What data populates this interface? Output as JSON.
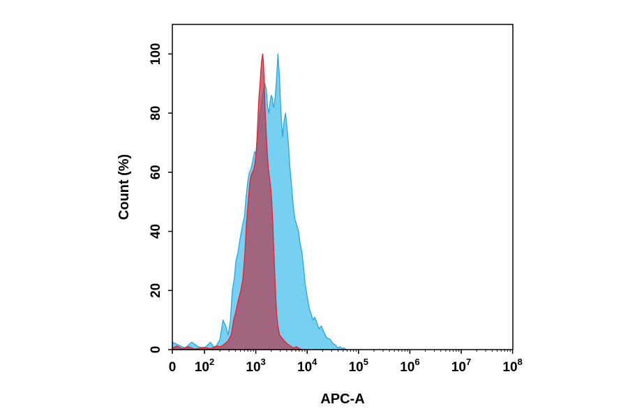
{
  "chart_data": {
    "type": "area",
    "title": "",
    "xlabel": "APC-A",
    "ylabel": "Count  (%)",
    "x_scale": "biexponential",
    "ylim": [
      0,
      110
    ],
    "grid": false,
    "legend": "none",
    "x_ticks": [
      {
        "value": 0,
        "base": "0",
        "exp": ""
      },
      {
        "value": 100,
        "base": "10",
        "exp": "2"
      },
      {
        "value": 1000,
        "base": "10",
        "exp": "3"
      },
      {
        "value": 10000,
        "base": "10",
        "exp": "4"
      },
      {
        "value": 100000,
        "base": "10",
        "exp": "5"
      },
      {
        "value": 1000000,
        "base": "10",
        "exp": "6"
      },
      {
        "value": 10000000,
        "base": "10",
        "exp": "7"
      },
      {
        "value": 100000000,
        "base": "10",
        "exp": "8"
      }
    ],
    "y_ticks": [
      {
        "value": 0,
        "label": "0"
      },
      {
        "value": 20,
        "label": "20"
      },
      {
        "value": 40,
        "label": "40"
      },
      {
        "value": 60,
        "label": "60"
      },
      {
        "value": 80,
        "label": "80"
      },
      {
        "value": 100,
        "label": "100"
      }
    ],
    "series": [
      {
        "fill": "#5ec8ee",
        "stroke": "#2aa6dc",
        "opacity": 0.85,
        "points": [
          [
            0,
            2.5
          ],
          [
            20,
            1.5
          ],
          [
            40,
            0.5
          ],
          [
            60,
            2.5
          ],
          [
            80,
            1
          ],
          [
            100,
            0.5
          ],
          [
            130,
            2.5
          ],
          [
            160,
            0.5
          ],
          [
            200,
            3.5
          ],
          [
            230,
            10
          ],
          [
            260,
            8
          ],
          [
            290,
            5
          ],
          [
            320,
            10
          ],
          [
            350,
            20
          ],
          [
            380,
            24
          ],
          [
            410,
            30
          ],
          [
            450,
            33
          ],
          [
            500,
            38
          ],
          [
            550,
            42
          ],
          [
            600,
            45
          ],
          [
            650,
            52
          ],
          [
            700,
            57
          ],
          [
            750,
            60
          ],
          [
            800,
            61
          ],
          [
            850,
            63
          ],
          [
            900,
            65
          ],
          [
            950,
            67
          ],
          [
            1000,
            66
          ],
          [
            1050,
            70
          ],
          [
            1100,
            73
          ],
          [
            1150,
            76
          ],
          [
            1200,
            80
          ],
          [
            1300,
            84
          ],
          [
            1400,
            88
          ],
          [
            1500,
            90
          ],
          [
            1600,
            88
          ],
          [
            1700,
            82
          ],
          [
            1800,
            80
          ],
          [
            1900,
            84
          ],
          [
            2000,
            86
          ],
          [
            2100,
            85
          ],
          [
            2200,
            82
          ],
          [
            2300,
            83
          ],
          [
            2400,
            86
          ],
          [
            2500,
            90
          ],
          [
            2600,
            95
          ],
          [
            2700,
            100
          ],
          [
            2800,
            96
          ],
          [
            2900,
            92
          ],
          [
            3000,
            85
          ],
          [
            3100,
            80
          ],
          [
            3200,
            76
          ],
          [
            3300,
            72
          ],
          [
            3400,
            74
          ],
          [
            3600,
            78
          ],
          [
            3800,
            80
          ],
          [
            4000,
            76
          ],
          [
            4300,
            70
          ],
          [
            4600,
            62
          ],
          [
            5000,
            55
          ],
          [
            5400,
            48
          ],
          [
            5800,
            44
          ],
          [
            6300,
            42
          ],
          [
            6800,
            40
          ],
          [
            7300,
            36
          ],
          [
            7900,
            33
          ],
          [
            8500,
            28
          ],
          [
            9200,
            22
          ],
          [
            10000,
            18
          ],
          [
            11000,
            14
          ],
          [
            12000,
            12
          ],
          [
            13000,
            10
          ],
          [
            14000,
            11
          ],
          [
            15500,
            9
          ],
          [
            17000,
            7
          ],
          [
            19000,
            8
          ],
          [
            21000,
            6
          ],
          [
            24000,
            4
          ],
          [
            28000,
            3.5
          ],
          [
            32000,
            2
          ],
          [
            36000,
            1.5
          ],
          [
            40000,
            0.5
          ],
          [
            44000,
            1
          ],
          [
            48000,
            0.3
          ],
          [
            52000,
            0.6
          ],
          [
            58000,
            0
          ]
        ]
      },
      {
        "fill": "#b0425a",
        "stroke": "#ee1c25",
        "opacity": 0.75,
        "points": [
          [
            0,
            0.5
          ],
          [
            15,
            1.2
          ],
          [
            30,
            0.3
          ],
          [
            50,
            1
          ],
          [
            70,
            0.2
          ],
          [
            100,
            0.8
          ],
          [
            130,
            0.3
          ],
          [
            170,
            1.2
          ],
          [
            210,
            1
          ],
          [
            250,
            2
          ],
          [
            290,
            3
          ],
          [
            330,
            5
          ],
          [
            370,
            10
          ],
          [
            410,
            13
          ],
          [
            460,
            17
          ],
          [
            510,
            20
          ],
          [
            560,
            24
          ],
          [
            610,
            32
          ],
          [
            660,
            43
          ],
          [
            710,
            50
          ],
          [
            760,
            56
          ],
          [
            810,
            59
          ],
          [
            860,
            60
          ],
          [
            910,
            61
          ],
          [
            960,
            63
          ],
          [
            1010,
            66
          ],
          [
            1060,
            72
          ],
          [
            1110,
            80
          ],
          [
            1160,
            86
          ],
          [
            1210,
            90
          ],
          [
            1260,
            95
          ],
          [
            1310,
            98
          ],
          [
            1360,
            100
          ],
          [
            1410,
            97
          ],
          [
            1460,
            90
          ],
          [
            1510,
            82
          ],
          [
            1560,
            77
          ],
          [
            1610,
            72
          ],
          [
            1680,
            66
          ],
          [
            1760,
            61
          ],
          [
            1850,
            58
          ],
          [
            1950,
            55
          ],
          [
            2050,
            50
          ],
          [
            2150,
            42
          ],
          [
            2250,
            33
          ],
          [
            2350,
            25
          ],
          [
            2450,
            18
          ],
          [
            2550,
            12
          ],
          [
            2700,
            8
          ],
          [
            2900,
            5
          ],
          [
            3200,
            4
          ],
          [
            3600,
            3
          ],
          [
            4100,
            2
          ],
          [
            4700,
            1.2
          ],
          [
            5400,
            0.6
          ],
          [
            6200,
            1
          ],
          [
            7100,
            0.3
          ],
          [
            8000,
            0
          ]
        ]
      }
    ]
  }
}
